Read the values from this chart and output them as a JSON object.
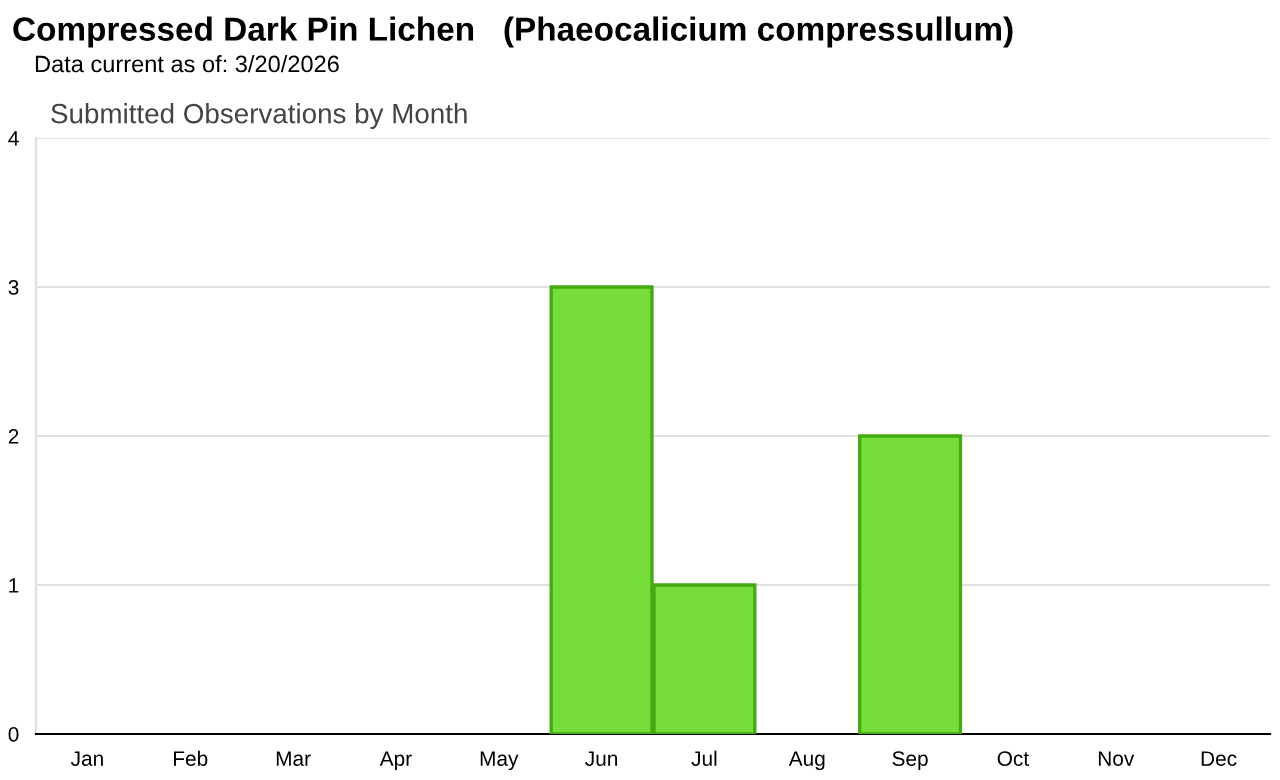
{
  "chart_data": {
    "type": "bar",
    "title": "Compressed Dark Pin Lichen   (Phaeocalicium compressullum)",
    "subtitle": "Data current as of: 3/20/2026",
    "annotations": [
      "Submitted Observations by Month"
    ],
    "categories": [
      "Jan",
      "Feb",
      "Mar",
      "Apr",
      "May",
      "Jun",
      "Jul",
      "Aug",
      "Sep",
      "Oct",
      "Nov",
      "Dec"
    ],
    "values": [
      0,
      0,
      0,
      0,
      0,
      3,
      1,
      0,
      2,
      0,
      0,
      0
    ],
    "color": "#77dd3a",
    "ylim": [
      0,
      4
    ],
    "yticks": [
      0,
      1,
      2,
      3,
      4
    ],
    "grid": "y",
    "legend": false
  }
}
